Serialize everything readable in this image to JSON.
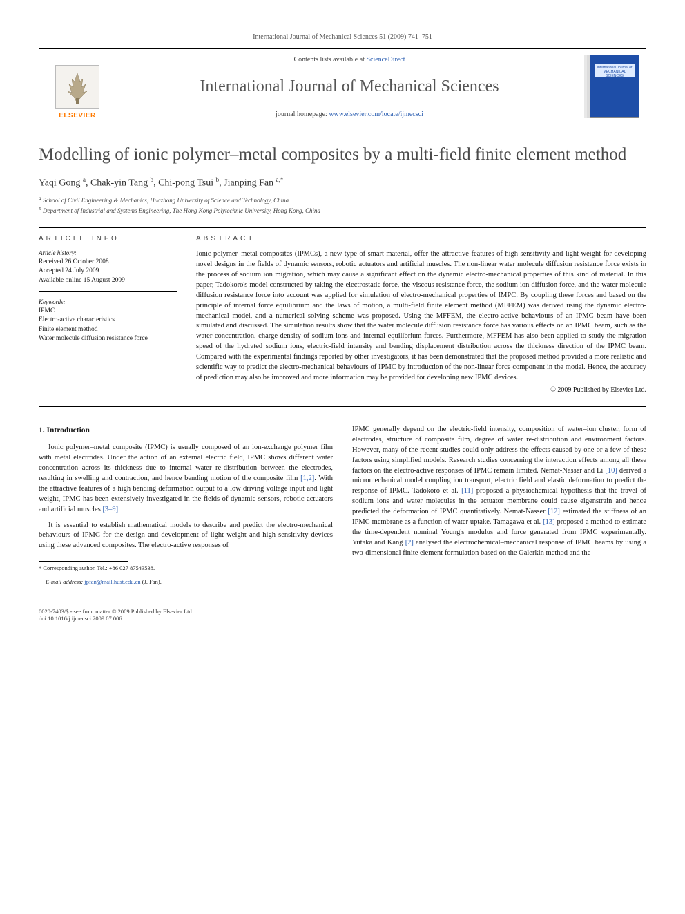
{
  "running_header": "International Journal of Mechanical Sciences 51 (2009) 741–751",
  "masthead": {
    "contents_prefix": "Contents lists available at ",
    "contents_link": "ScienceDirect",
    "journal_name": "International Journal of Mechanical Sciences",
    "homepage_prefix": "journal homepage: ",
    "homepage_link": "www.elsevier.com/locate/ijmecsci",
    "publisher": "ELSEVIER",
    "cover_label_1": "International Journal of",
    "cover_label_2": "MECHANICAL",
    "cover_label_3": "SCIENCES"
  },
  "title": "Modelling of ionic polymer–metal composites by a multi-field finite element method",
  "authors_html": "Yaqi Gong <sup>a</sup>, Chak-yin Tang <sup>b</sup>, Chi-pong Tsui <sup>b</sup>, Jianping Fan <sup>a,*</sup>",
  "affiliations": {
    "a": "School of Civil Engineering & Mechanics, Huazhong University of Science and Technology, China",
    "b": "Department of Industrial and Systems Engineering, The Hong Kong Polytechnic University, Hong Kong, China"
  },
  "article_info": {
    "heading": "ARTICLE INFO",
    "history_label": "Article history:",
    "received": "Received 26 October 2008",
    "accepted": "Accepted 24 July 2009",
    "online": "Available online 15 August 2009",
    "keywords_label": "Keywords:",
    "keywords": [
      "IPMC",
      "Electro-active characteristics",
      "Finite element method",
      "Water molecule diffusion resistance force"
    ]
  },
  "abstract": {
    "heading": "ABSTRACT",
    "text": "Ionic polymer–metal composites (IPMCs), a new type of smart material, offer the attractive features of high sensitivity and light weight for developing novel designs in the fields of dynamic sensors, robotic actuators and artificial muscles. The non-linear water molecule diffusion resistance force exists in the process of sodium ion migration, which may cause a significant effect on the dynamic electro-mechanical properties of this kind of material. In this paper, Tadokoro's model constructed by taking the electrostatic force, the viscous resistance force, the sodium ion diffusion force, and the water molecule diffusion resistance force into account was applied for simulation of electro-mechanical properties of IMPC. By coupling these forces and based on the principle of internal force equilibrium and the laws of motion, a multi-field finite element method (MFFEM) was derived using the dynamic electro-mechanical model, and a numerical solving scheme was proposed. Using the MFFEM, the electro-active behaviours of an IPMC beam have been simulated and discussed. The simulation results show that the water molecule diffusion resistance force has various effects on an IPMC beam, such as the water concentration, charge density of sodium ions and internal equilibrium forces. Furthermore, MFFEM has also been applied to study the migration speed of the hydrated sodium ions, electric-field intensity and bending displacement distribution across the thickness direction of the IPMC beam. Compared with the experimental findings reported by other investigators, it has been demonstrated that the proposed method provided a more realistic and scientific way to predict the electro-mechanical behaviours of IPMC by introduction of the non-linear force component in the model. Hence, the accuracy of prediction may also be improved and more information may be provided for developing new IPMC devices.",
    "copyright": "© 2009 Published by Elsevier Ltd."
  },
  "section1": {
    "heading": "1. Introduction",
    "p1_a": "Ionic polymer–metal composite (IPMC) is usually composed of an ion-exchange polymer film with metal electrodes. Under the action of an external electric field, IPMC shows different water concentration across its thickness due to internal water re-distribution between the electrodes, resulting in swelling and contraction, and hence bending motion of the composite film ",
    "p1_ref1": "[1,2]",
    "p1_b": ". With the attractive features of a high bending deformation output to a low driving voltage input and light weight, IPMC has been extensively investigated in the fields of dynamic sensors, robotic actuators and artificial muscles ",
    "p1_ref2": "[3–9]",
    "p1_c": ".",
    "p2": "It is essential to establish mathematical models to describe and predict the electro-mechanical behaviours of IPMC for the design and development of light weight and high sensitivity devices using these advanced composites. The electro-active responses of",
    "p3_a": "IPMC generally depend on the electric-field intensity, composition of water–ion cluster, form of electrodes, structure of composite film, degree of water re-distribution and environment factors. However, many of the recent studies could only address the effects caused by one or a few of these factors using simplified models. Research studies concerning the interaction effects among all these factors on the electro-active responses of IPMC remain limited. Nemat-Nasser and Li ",
    "p3_ref1": "[10]",
    "p3_b": " derived a micromechanical model coupling ion transport, electric field and elastic deformation to predict the response of IPMC. Tadokoro et al. ",
    "p3_ref2": "[11]",
    "p3_c": " proposed a physiochemical hypothesis that the travel of sodium ions and water molecules in the actuator membrane could cause eigenstrain and hence predicted the deformation of IPMC quantitatively. Nemat-Nasser ",
    "p3_ref3": "[12]",
    "p3_d": " estimated the stiffness of an IPMC membrane as a function of water uptake. Tamagawa et al. ",
    "p3_ref4": "[13]",
    "p3_e": " proposed a method to estimate the time-dependent nominal Young's modulus and force generated from IPMC experimentally. Yutaka and Kang ",
    "p3_ref5": "[2]",
    "p3_f": " analysed the electrochemical–mechanical response of IPMC beams by using a two-dimensional finite element formulation based on the Galerkin method and the"
  },
  "footnote": {
    "corr": "* Corresponding author. Tel.: +86 027 87543538.",
    "email_label": "E-mail address: ",
    "email": "jpfan@mail.hust.edu.cn",
    "email_suffix": " (J. Fan)."
  },
  "footer": {
    "left1": "0020-7403/$ - see front matter © 2009 Published by Elsevier Ltd.",
    "left2": "doi:10.1016/j.ijmecsci.2009.07.006"
  },
  "colors": {
    "link": "#2a5db0",
    "publisher": "#ff7a00",
    "title_grey": "#4a4a4a",
    "cover_blue": "#1e4ea8"
  }
}
